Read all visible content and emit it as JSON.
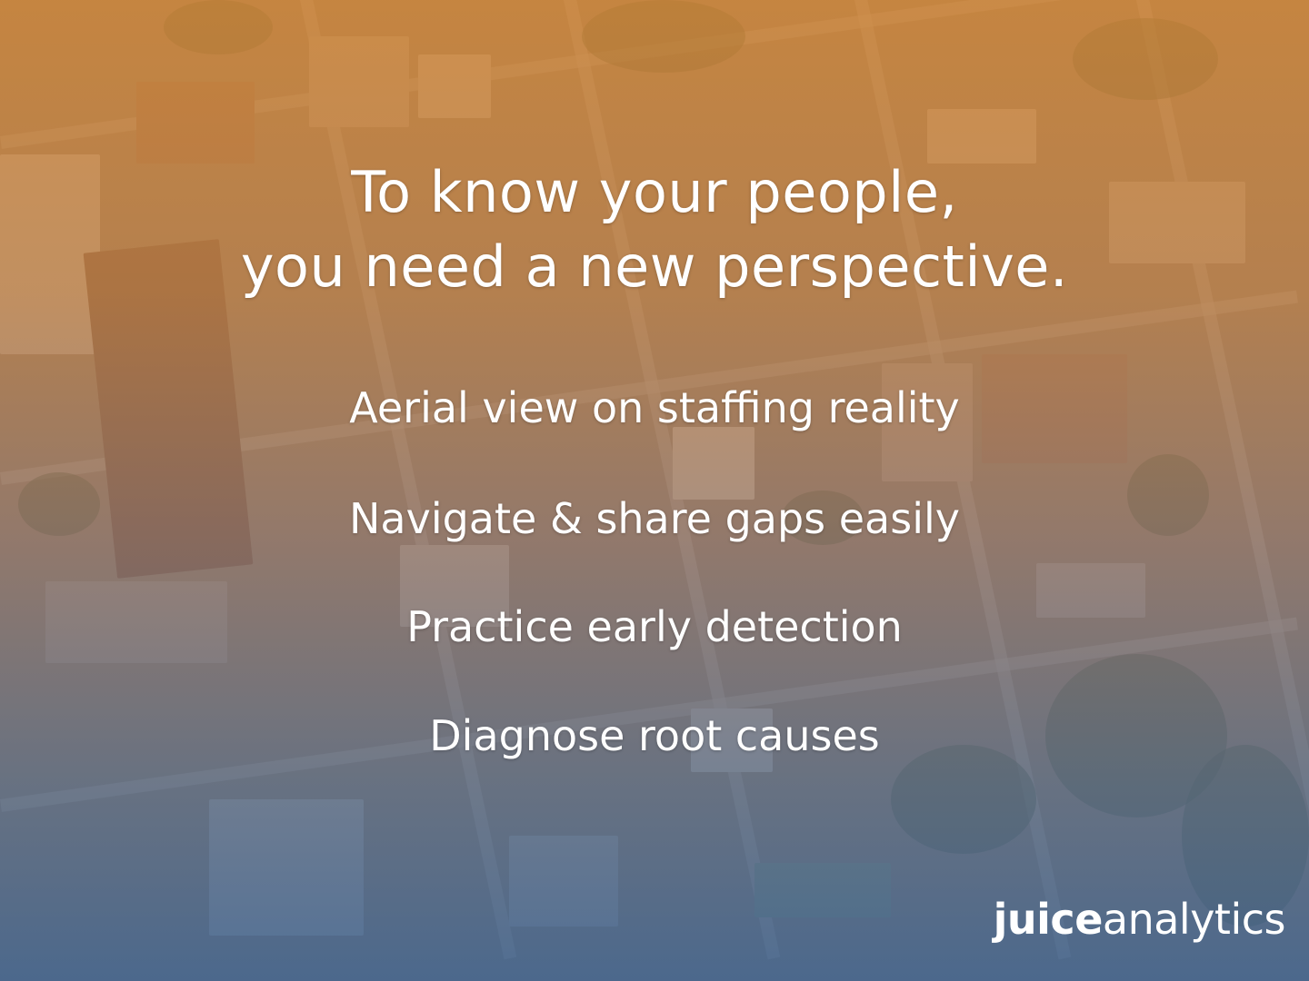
{
  "slide": {
    "headline_line1": "To know your people,",
    "headline_line2": "you need a new perspective.",
    "points": [
      "Aerial view on staffing reality",
      "Navigate & share gaps easily",
      "Practice early detection",
      "Diagnose root causes"
    ]
  },
  "logo": {
    "part1": "juice",
    "part2": "analytics"
  },
  "colors": {
    "top_tint": "#d68836",
    "bottom_tint": "#3c6496",
    "text": "#ffffff"
  }
}
